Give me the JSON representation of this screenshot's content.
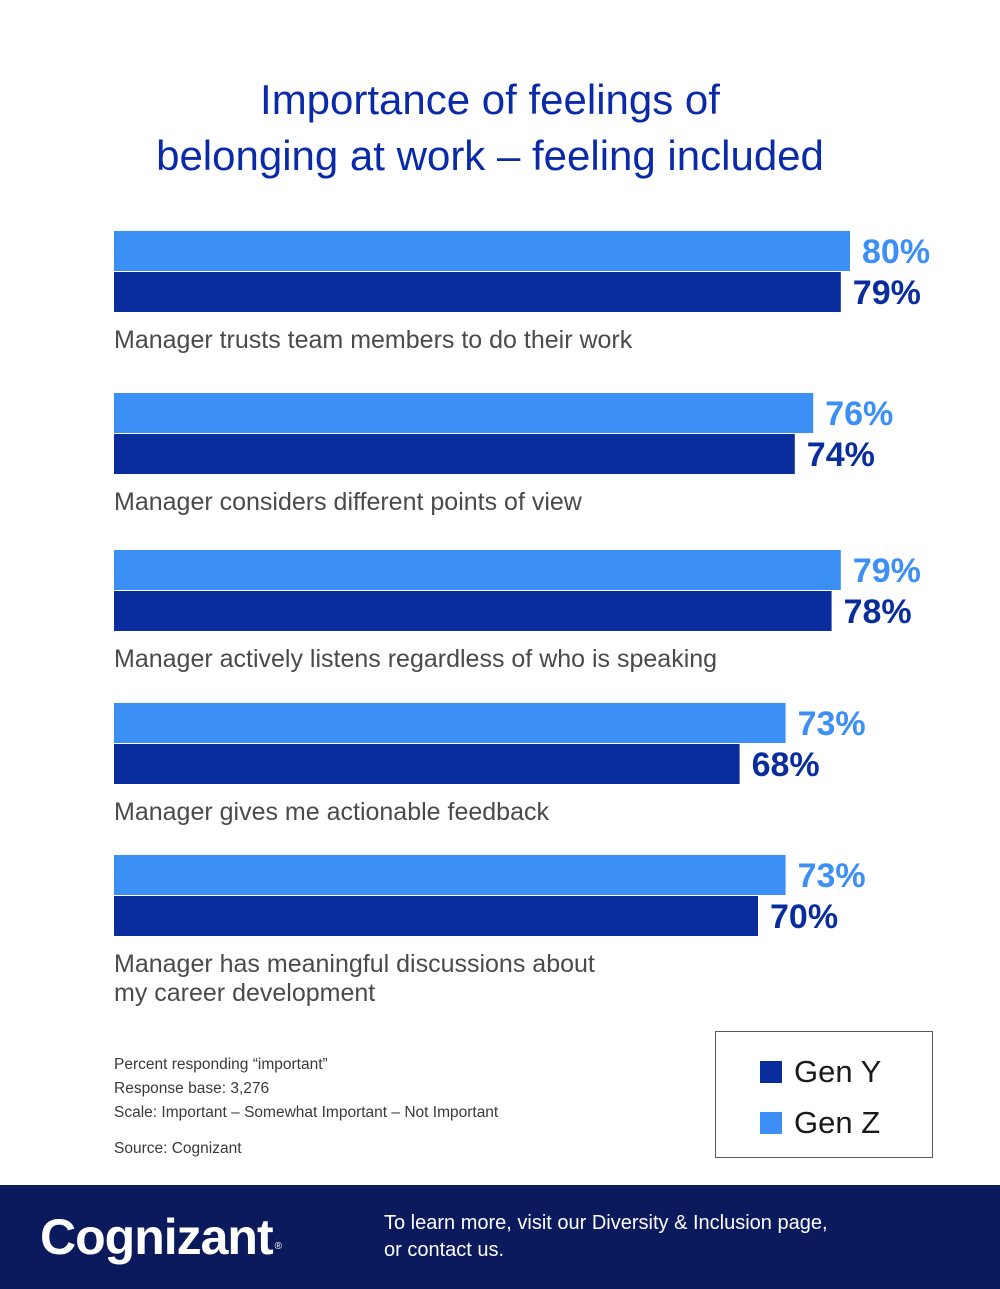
{
  "title_lines": [
    "Importance of feelings of",
    "belonging at work – feeling included"
  ],
  "chart_data": {
    "type": "bar",
    "orientation": "horizontal",
    "categories": [
      [
        "Manager trusts team members to do their work"
      ],
      [
        "Manager considers different points of view"
      ],
      [
        "Manager actively listens regardless of who is speaking"
      ],
      [
        "Manager gives me actionable feedback"
      ],
      [
        "Manager has meaningful discussions about",
        "my career development"
      ]
    ],
    "series": [
      {
        "name": "Gen Z",
        "color": "#3c8ff5",
        "values": [
          80,
          76,
          79,
          73,
          73
        ]
      },
      {
        "name": "Gen Y",
        "color": "#0a2d9e",
        "values": [
          79,
          74,
          78,
          68,
          70
        ]
      }
    ],
    "value_suffix": "%",
    "legend_position": "bottom-right"
  },
  "notes": [
    "Percent responding “important”",
    "Response base: 3,276",
    "Scale: Important – Somewhat Important – Not Important"
  ],
  "source": "Source: Cognizant",
  "legend": [
    {
      "label": "Gen Y",
      "color": "#0a2d9e"
    },
    {
      "label": "Gen Z",
      "color": "#3c8ff5"
    }
  ],
  "footer": {
    "logo": "Cognizant",
    "trademark": "®",
    "cta_lines": [
      "To learn more, visit our Diversity & Inclusion page,",
      "or contact us."
    ],
    "background": "#0b1a5c"
  }
}
